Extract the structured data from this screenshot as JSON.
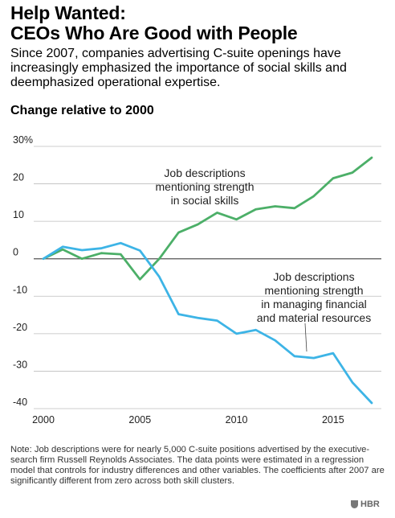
{
  "title_line1": "Help Wanted:",
  "title_line2": "CEOs Who Are Good with People",
  "subtitle": "Since 2007, companies advertising C-suite openings have increasingly emphasized the importance of social skills and deemphasized operational expertise.",
  "chart_label": "Change relative to 2000",
  "note": "Note: Job descriptions were for nearly 5,000 C-suite positions advertised by the executive-search firm Russell Reynolds Associates. The data points were estimated in a regression model that controls for industry differences and other variables. The coefficients after 2007 are significantly different from zero across both skill clusters.",
  "logo_text": "HBR",
  "chart_data": {
    "type": "line",
    "title": "Change relative to 2000",
    "xlabel": "",
    "ylabel": "",
    "xlim": [
      1999.5,
      2017.5
    ],
    "ylim": [
      -40,
      30
    ],
    "x_ticks": [
      {
        "value": 2000,
        "label": "2000"
      },
      {
        "value": 2005,
        "label": "2005"
      },
      {
        "value": 2010,
        "label": "2010"
      },
      {
        "value": 2015,
        "label": "2015"
      }
    ],
    "y_ticks": [
      {
        "value": 30,
        "label": "30%"
      },
      {
        "value": 20,
        "label": "20"
      },
      {
        "value": 10,
        "label": "10"
      },
      {
        "value": 0,
        "label": "0"
      },
      {
        "value": -10,
        "label": "-10"
      },
      {
        "value": -20,
        "label": "-20"
      },
      {
        "value": -30,
        "label": "-30"
      },
      {
        "value": -40,
        "label": "-40"
      }
    ],
    "grid": true,
    "x": [
      2000,
      2001,
      2002,
      2003,
      2004,
      2005,
      2006,
      2007,
      2008,
      2009,
      2010,
      2011,
      2012,
      2013,
      2014,
      2015,
      2016,
      2017
    ],
    "series": [
      {
        "name": "Job descriptions mentioning strength in social skills",
        "color": "#4caf68",
        "values": [
          0,
          2.5,
          0,
          1.5,
          1.2,
          -5.5,
          0,
          7,
          9.2,
          12.3,
          10.5,
          13.2,
          14,
          13.5,
          16.7,
          21.5,
          23,
          27
        ]
      },
      {
        "name": "Job descriptions mentioning strength in managing financial and material resources",
        "color": "#3db4e6",
        "values": [
          0,
          3.2,
          2.3,
          2.8,
          4.2,
          2.2,
          -4.8,
          -14.8,
          -15.8,
          -16.5,
          -20,
          -19,
          -21.8,
          -26,
          -26.5,
          -25.2,
          -33,
          -38.5
        ]
      }
    ],
    "annotations": [
      {
        "series": 0,
        "lines": [
          "Job descriptions",
          "mentioning strength",
          "in social skills"
        ]
      },
      {
        "series": 1,
        "lines": [
          "Job descriptions",
          "mentioning strength",
          "in managing financial",
          "and material resources"
        ]
      }
    ]
  }
}
